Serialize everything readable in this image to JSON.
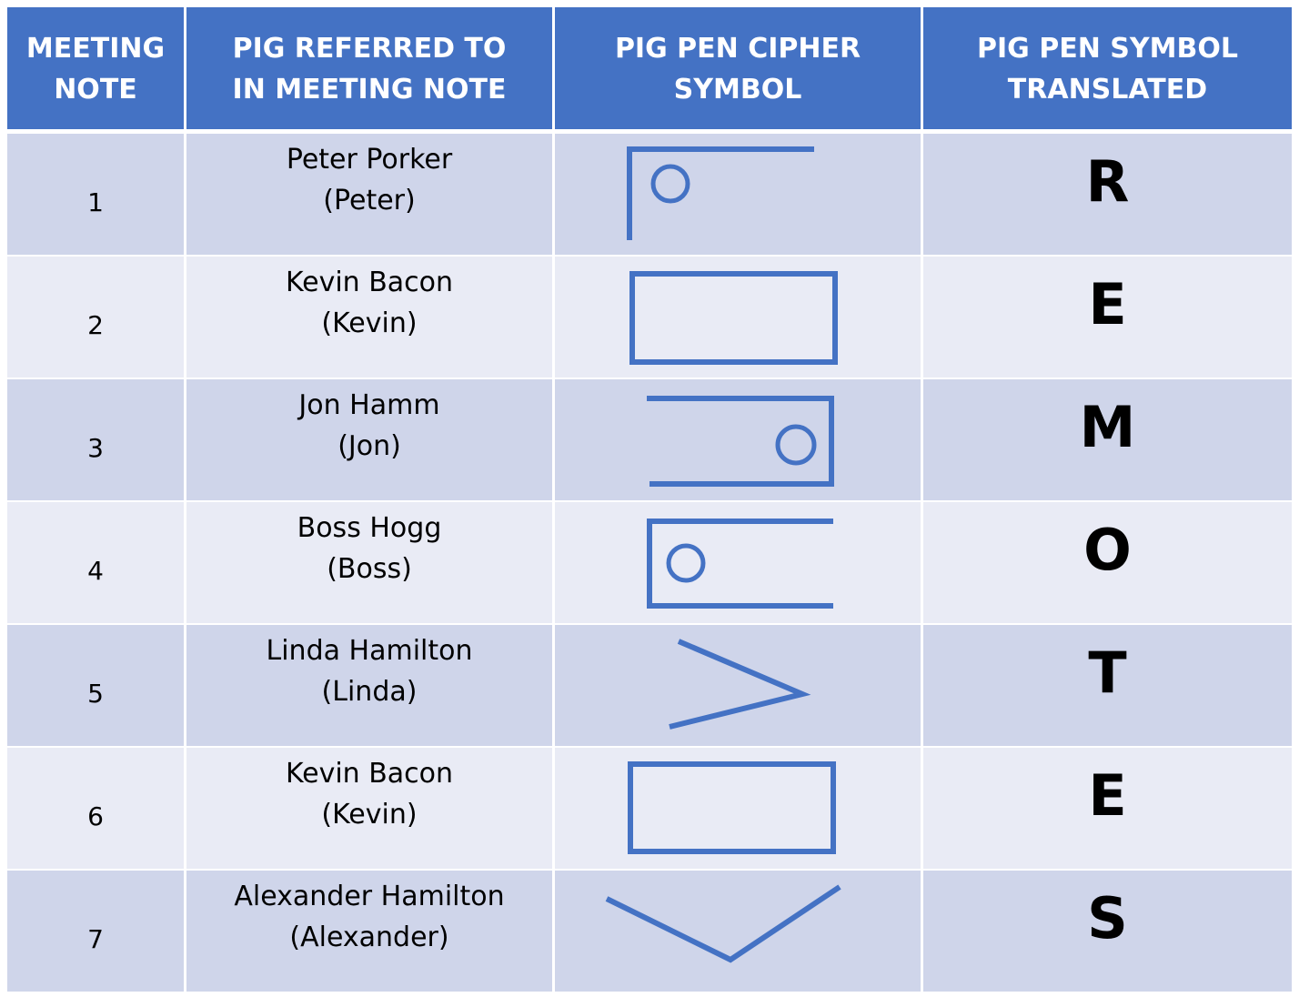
{
  "header": {
    "col1": "MEETING\nNOTE",
    "col2": "PIG REFERRED TO\nIN MEETING NOTE",
    "col3": "PIG PEN CIPHER\nSYMBOL",
    "col4": "PIG PEN SYMBOL\nTRANSLATED"
  },
  "rows": [
    {
      "note": "1",
      "pig_name": "Peter Porker",
      "pig_short": "(Peter)",
      "symbol": "pigpen-r-symbol",
      "letter": "R"
    },
    {
      "note": "2",
      "pig_name": "Kevin Bacon",
      "pig_short": "(Kevin)",
      "symbol": "pigpen-e-symbol",
      "letter": "E"
    },
    {
      "note": "3",
      "pig_name": "Jon Hamm",
      "pig_short": "(Jon)",
      "symbol": "pigpen-m-symbol",
      "letter": "M"
    },
    {
      "note": "4",
      "pig_name": "Boss Hogg",
      "pig_short": "(Boss)",
      "symbol": "pigpen-o-symbol",
      "letter": "O"
    },
    {
      "note": "5",
      "pig_name": "Linda Hamilton",
      "pig_short": "(Linda)",
      "symbol": "pigpen-t-symbol",
      "letter": "T"
    },
    {
      "note": "6",
      "pig_name": "Kevin Bacon",
      "pig_short": "(Kevin)",
      "symbol": "pigpen-e-symbol",
      "letter": "E"
    },
    {
      "note": "7",
      "pig_name": "Alexander Hamilton",
      "pig_short": "(Alexander)",
      "symbol": "pigpen-s-symbol",
      "letter": "S"
    }
  ],
  "colors": {
    "header": "#4472C4",
    "row_odd": "#CFD5EA",
    "row_even": "#E9EBF5",
    "symbol_stroke": "#4472C4"
  }
}
